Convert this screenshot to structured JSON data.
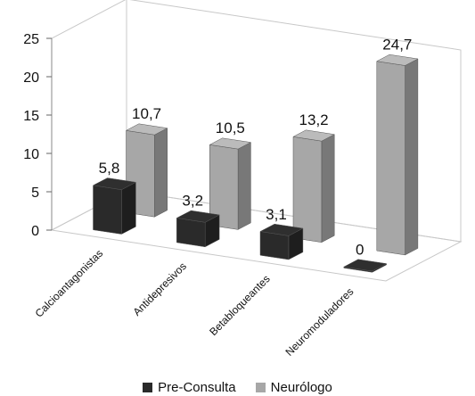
{
  "chart_data": {
    "type": "bar",
    "style": "3d-clustered-column",
    "categories": [
      "Calcioantagonistas",
      "Antidepresivos",
      "Betabloqueantes",
      "Neuromoduladores"
    ],
    "series": [
      {
        "name": "Pre-Consulta",
        "values": [
          5.8,
          3.2,
          3.1,
          0
        ],
        "labels": [
          "5,8",
          "3,2",
          "3,1",
          "0"
        ],
        "color": "#2a2a2a"
      },
      {
        "name": "Neurólogo",
        "values": [
          10.7,
          10.5,
          13.2,
          24.7
        ],
        "labels": [
          "10,7",
          "10,5",
          "13,2",
          "24,7"
        ],
        "color": "#a7a7a7"
      }
    ],
    "yticks": [
      "0",
      "5",
      "10",
      "15",
      "20",
      "25"
    ],
    "ylim": [
      0,
      25
    ],
    "grid": false,
    "legend_position": "bottom"
  }
}
